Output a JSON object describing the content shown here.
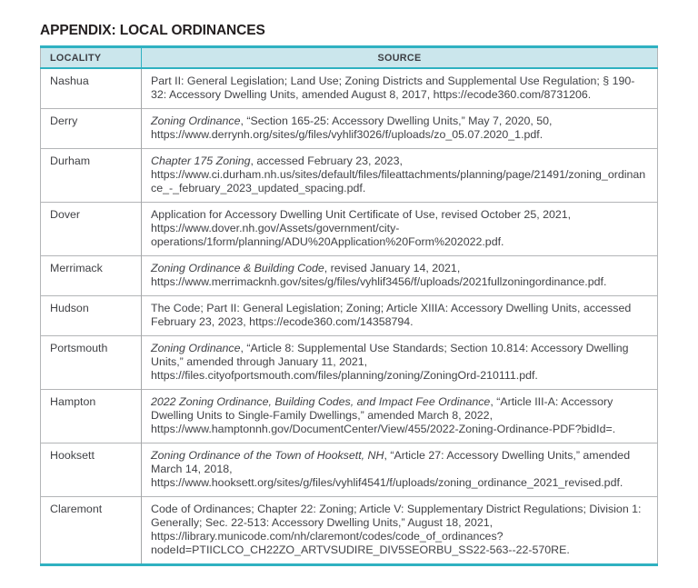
{
  "page": {
    "title": "APPENDIX: LOCAL ORDINANCES"
  },
  "table": {
    "headers": [
      "LOCALITY",
      "SOURCE"
    ],
    "rows": [
      {
        "locality": "Nashua",
        "source_italic": "",
        "source_text": "Part II: General Legislation; Land Use; Zoning Districts and Supplemental Use Regulation; § 190-32: Accessory Dwelling Units, amended August 8, 2017, https://ecode360.com/8731206."
      },
      {
        "locality": "Derry",
        "source_italic": "Zoning Ordinance",
        "source_text": ", “Section 165-25: Accessory Dwelling Units,” May 7, 2020, 50,  https://www.derrynh.org/sites/g/files/vyhlif3026/f/uploads/zo_05.07.2020_1.pdf."
      },
      {
        "locality": "Durham",
        "source_italic": "Chapter 175 Zoning",
        "source_text": ", accessed February 23, 2023, https://www.ci.durham.nh.us/sites/default/files/fileattachments/planning/page/21491/zoning_ordinance_-_february_2023_updated_spacing.pdf."
      },
      {
        "locality": "Dover",
        "source_italic": "",
        "source_text": "Application for Accessory Dwelling Unit Certificate of Use, revised October 25, 2021, https://www.dover.nh.gov/Assets/government/city-operations/1form/planning/ADU%20Application%20Form%202022.pdf."
      },
      {
        "locality": "Merrimack",
        "source_italic": "Zoning Ordinance & Building Code",
        "source_text": ", revised January 14, 2021, https://www.merrimacknh.gov/sites/g/files/vyhlif3456/f/uploads/2021fullzoningordinance.pdf."
      },
      {
        "locality": "Hudson",
        "source_italic": "",
        "source_text": "The Code; Part II: General Legislation; Zoning; Article XIIIA: Accessory Dwelling Units, accessed February 23, 2023, https://ecode360.com/14358794."
      },
      {
        "locality": "Portsmouth",
        "source_italic": "Zoning Ordinance",
        "source_text": ", “Article 8: Supplemental Use Standards; Section 10.814: Accessory Dwelling Units,” amended through January 11, 2021, https://files.cityofportsmouth.com/files/planning/zoning/ZoningOrd-210111.pdf."
      },
      {
        "locality": "Hampton",
        "source_italic": "2022 Zoning Ordinance, Building Codes, and Impact Fee Ordinance",
        "source_text": ", “Article III-A: Accessory Dwelling Units to Single-Family Dwellings,” amended March 8, 2022, https://www.hamptonnh.gov/DocumentCenter/View/455/2022-Zoning-Ordinance-PDF?bidId=."
      },
      {
        "locality": "Hooksett",
        "source_italic": "Zoning Ordinance of the Town of Hooksett, NH",
        "source_text": ", “Article 27: Accessory Dwelling Units,” amended March 14, 2018, https://www.hooksett.org/sites/g/files/vyhlif4541/f/uploads/zoning_ordinance_2021_revised.pdf."
      },
      {
        "locality": "Claremont",
        "source_italic": "",
        "source_text": "Code of Ordinances; Chapter 22: Zoning; Article V: Supplementary District Regulations; Division 1: Generally; Sec. 22-513: Accessory Dwelling Units,” August 18, 2021, https://library.municode.com/nh/claremont/codes/code_of_ordinances?nodeId=PTIICLCO_CH22ZO_ARTVSUDIRE_DIV5SEORBU_SS22-563--22-570RE."
      }
    ]
  },
  "colors": {
    "accent_teal": "#2fb1c1",
    "header_bg": "#cbe6ec",
    "grid_line": "#b3b5b7",
    "text": "#414246"
  }
}
